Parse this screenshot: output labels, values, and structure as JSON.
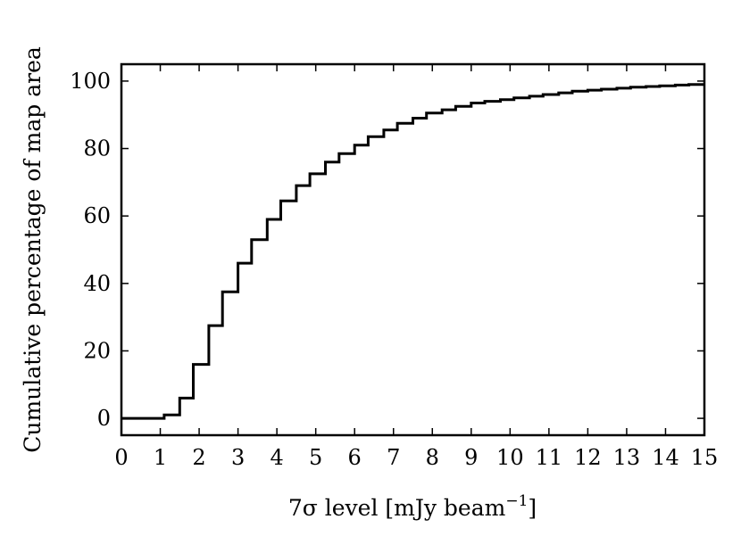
{
  "chart_data": {
    "type": "line",
    "step": true,
    "xlabel": "7σ level [mJy beam⁻¹]",
    "xlabel_parts": {
      "main": "7σ level [mJy beam",
      "sup": "−1",
      "tail": "]"
    },
    "ylabel": "Cumulative percentage of map area",
    "xlim": [
      0,
      15
    ],
    "ylim": [
      -5,
      105
    ],
    "xticks": [
      0,
      1,
      2,
      3,
      4,
      5,
      6,
      7,
      8,
      9,
      10,
      11,
      12,
      13,
      14,
      15
    ],
    "yticks": [
      0,
      20,
      40,
      60,
      80,
      100
    ],
    "grid": false,
    "series": [
      {
        "bin_edges": [
          0,
          1.1,
          1.5,
          1.85,
          2.25,
          2.6,
          3.0,
          3.35,
          3.75,
          4.1,
          4.5,
          4.85,
          5.25,
          5.6,
          6.0,
          6.35,
          6.75,
          7.1,
          7.5,
          7.85,
          8.25,
          8.6,
          9.0,
          9.35,
          9.75,
          10.1,
          10.5,
          10.85,
          11.25,
          11.6,
          12.0,
          12.35,
          12.75,
          13.1,
          13.5,
          13.85,
          14.25,
          14.6,
          15.0
        ],
        "values": [
          0,
          1,
          6,
          16,
          27.5,
          37.5,
          46,
          53,
          59,
          64.5,
          69,
          72.5,
          76,
          78.5,
          81,
          83.5,
          85.5,
          87.5,
          89,
          90.5,
          91.5,
          92.5,
          93.5,
          94,
          94.5,
          95,
          95.5,
          96,
          96.5,
          97,
          97.3,
          97.6,
          97.9,
          98.2,
          98.4,
          98.6,
          98.8,
          99
        ]
      }
    ]
  }
}
